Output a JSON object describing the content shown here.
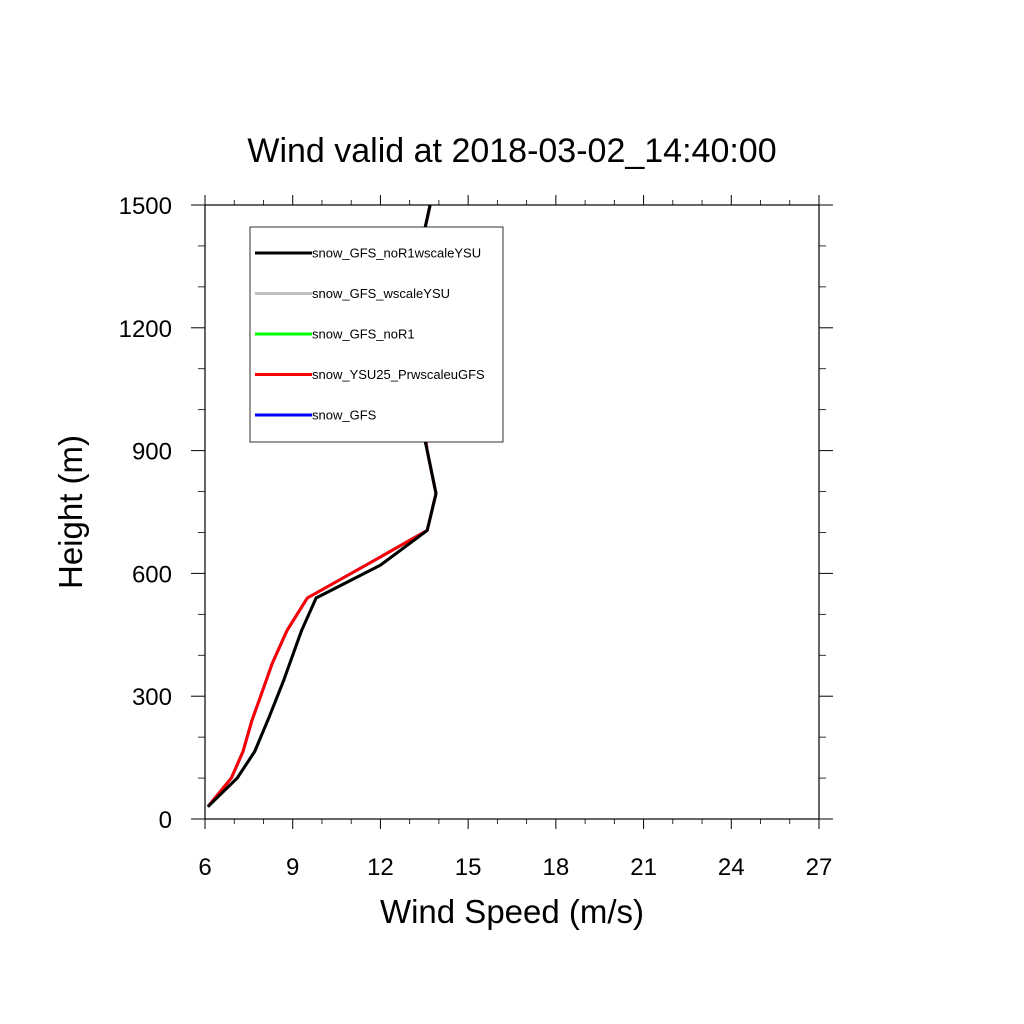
{
  "chart_data": {
    "type": "line",
    "title": "Wind valid at 2018-03-02_14:40:00",
    "xlabel": "Wind Speed (m/s)",
    "ylabel": "Height (m)",
    "xlim": [
      6,
      27
    ],
    "ylim": [
      0,
      1500
    ],
    "xticks": [
      "6",
      "9",
      "12",
      "15",
      "18",
      "21",
      "24",
      "27"
    ],
    "yticks": [
      "0",
      "300",
      "600",
      "900",
      "1200",
      "1500"
    ],
    "grid": false,
    "legend_position": "top-left",
    "series": [
      {
        "name": "snow_GFS_noR1wscaleYSU",
        "color": "#000000",
        "x": [
          6.1,
          7.1,
          7.7,
          8.2,
          8.7,
          9.3,
          9.8,
          12.0,
          13.6,
          13.9,
          13.6,
          13.3,
          13.0,
          13.1,
          13.3,
          13.7
        ],
        "y": [
          30,
          100,
          165,
          250,
          340,
          460,
          540,
          620,
          705,
          795,
          900,
          1000,
          1150,
          1260,
          1370,
          1500
        ]
      },
      {
        "name": "snow_GFS_wscaleYSU",
        "color": "#c0c0c0",
        "x": [
          6.1,
          7.1,
          7.7,
          8.2,
          8.7,
          9.3,
          9.8,
          12.0,
          13.6,
          13.9,
          13.6,
          13.3,
          13.0,
          13.1,
          13.3,
          13.7
        ],
        "y": [
          30,
          100,
          165,
          250,
          340,
          460,
          540,
          620,
          705,
          795,
          900,
          1000,
          1150,
          1260,
          1370,
          1500
        ]
      },
      {
        "name": "snow_GFS_noR1",
        "color": "#00ff00",
        "x": [
          6.1,
          7.1,
          7.7,
          8.2,
          8.7,
          9.3,
          9.8,
          12.0,
          13.6,
          13.9,
          13.6,
          13.3,
          13.0,
          13.1,
          13.3,
          13.7
        ],
        "y": [
          30,
          100,
          165,
          250,
          340,
          460,
          540,
          620,
          705,
          795,
          900,
          1000,
          1150,
          1260,
          1370,
          1500
        ]
      },
      {
        "name": "snow_YSU25_PrwscaleuGFS",
        "color": "#ff0000",
        "x": [
          6.1,
          6.9,
          7.3,
          7.6,
          7.9,
          8.3,
          8.8,
          9.5,
          12.0,
          13.6,
          13.9,
          13.6,
          13.4,
          13.1,
          13.1,
          13.3,
          13.7
        ],
        "y": [
          30,
          100,
          165,
          240,
          300,
          380,
          460,
          540,
          640,
          705,
          795,
          900,
          1000,
          1150,
          1260,
          1370,
          1500
        ]
      },
      {
        "name": "snow_GFS",
        "color": "#0000ff",
        "x": [
          6.1,
          6.9,
          7.3,
          7.6,
          7.9,
          8.3,
          8.8,
          9.5,
          12.0,
          13.6,
          13.9,
          13.6,
          13.4,
          13.1,
          13.1,
          13.3,
          13.7
        ],
        "y": [
          30,
          100,
          165,
          240,
          300,
          380,
          460,
          540,
          640,
          705,
          795,
          900,
          1000,
          1150,
          1260,
          1370,
          1500
        ]
      }
    ],
    "draw_order": [
      4,
      2,
      1,
      3,
      0
    ]
  }
}
